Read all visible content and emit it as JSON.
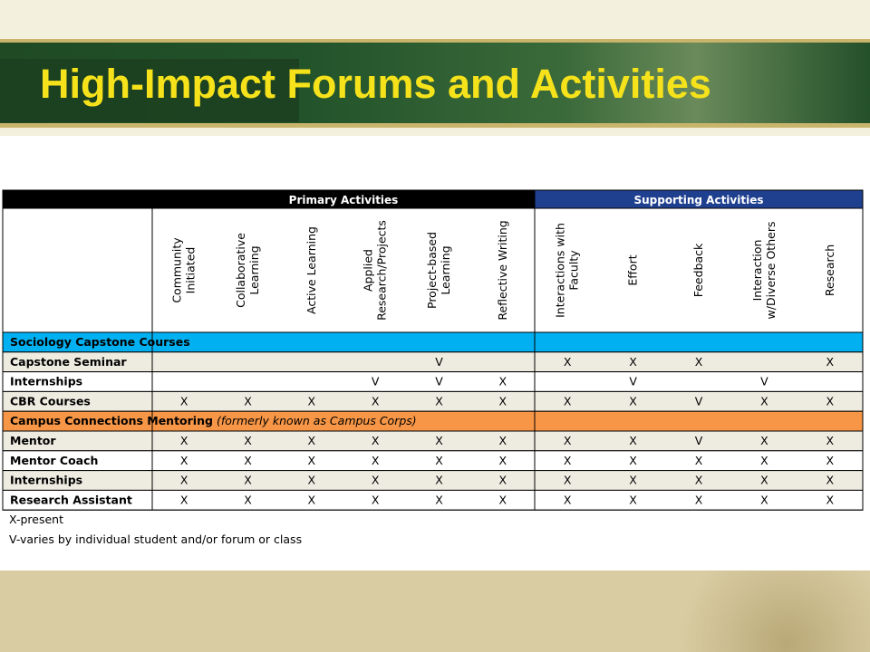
{
  "title": "High-Impact Forums and Activities",
  "table": {
    "group_headers": [
      "Primary Activities",
      "Supporting Activities"
    ],
    "columns": [
      [
        "Community",
        "Initiated"
      ],
      [
        "Collaborative",
        "Learning"
      ],
      [
        "Active Learning"
      ],
      [
        "Applied",
        "Research/Projects"
      ],
      [
        "Project-based",
        "Learning"
      ],
      [
        "Reflective Writing"
      ],
      [
        "Interactions with",
        "Faculty"
      ],
      [
        "Effort"
      ],
      [
        "Feedback"
      ],
      [
        "Interaction",
        "w/Diverse Others"
      ],
      [
        "Research"
      ]
    ],
    "sections": [
      {
        "label": "Sociology Capstone Courses",
        "rows": [
          {
            "label": "Capstone Seminar",
            "cells": [
              null,
              null,
              null,
              null,
              "V",
              null,
              "X",
              "X",
              "X",
              null,
              "X"
            ]
          },
          {
            "label": "Internships",
            "cells": [
              null,
              null,
              null,
              "V",
              "V",
              "X",
              null,
              "V",
              null,
              "V",
              null
            ]
          },
          {
            "label": "CBR Courses",
            "cells": [
              "X",
              "X",
              "X",
              "X",
              "X",
              "X",
              "X",
              "X",
              "V",
              "X",
              "X"
            ]
          }
        ]
      },
      {
        "label": "Campus Connections Mentoring",
        "label_note": "(formerly known as Campus Corps)",
        "rows": [
          {
            "label": "Mentor",
            "cells": [
              "X",
              "X",
              "X",
              "X",
              "X",
              "X",
              "X",
              "X",
              "V",
              "X",
              "X"
            ]
          },
          {
            "label": "Mentor Coach",
            "cells": [
              "X",
              "X",
              "X",
              "X",
              "X",
              "X",
              "X",
              "X",
              "X",
              "X",
              "X"
            ]
          },
          {
            "label": "Internships",
            "cells": [
              "X",
              "X",
              "X",
              "X",
              "X",
              "X",
              "X",
              "X",
              "X",
              "X",
              "X"
            ]
          },
          {
            "label": "Research Assistant",
            "cells": [
              "X",
              "X",
              "X",
              "X",
              "X",
              "X",
              "X",
              "X",
              "X",
              "X",
              "X"
            ]
          }
        ]
      }
    ]
  },
  "notes": [
    "X-present",
    "V-varies by individual student and/or forum or class"
  ]
}
